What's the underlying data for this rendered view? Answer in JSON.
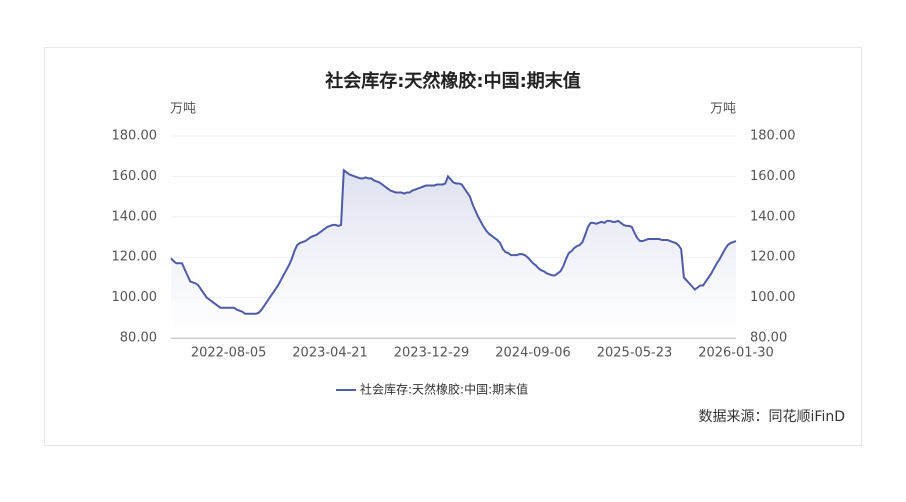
{
  "chart_data": {
    "type": "line",
    "title": "社会库存:天然橡胶:中国:期末值",
    "y_label": "万吨",
    "y2_label": "万吨",
    "source": "数据来源：同花顺iFinD",
    "categories": [
      null,
      null,
      null,
      null,
      null,
      null,
      null,
      null,
      null,
      null,
      null,
      null,
      null,
      null,
      null,
      null,
      null,
      null,
      null,
      null,
      null,
      "2022-08-05",
      null,
      null,
      null,
      null,
      null,
      null,
      null,
      null,
      null,
      null,
      null,
      null,
      null,
      null,
      null,
      null,
      null,
      null,
      null,
      null,
      null,
      null,
      null,
      null,
      null,
      null,
      null,
      null,
      null,
      null,
      null,
      null,
      null,
      null,
      null,
      null,
      "2023-04-21",
      null,
      null,
      null,
      null,
      null,
      null,
      null,
      null,
      null,
      null,
      null,
      null,
      null,
      null,
      null,
      null,
      null,
      null,
      null,
      null,
      null,
      null,
      null,
      null,
      null,
      null,
      null,
      null,
      null,
      null,
      null,
      null,
      null,
      null,
      null,
      null,
      "2023-12-29",
      null,
      null,
      null,
      null,
      null,
      null,
      null,
      null,
      null,
      null,
      null,
      null,
      null,
      null,
      null,
      null,
      null,
      null,
      null,
      null,
      null,
      null,
      null,
      null,
      null,
      null,
      null,
      null,
      null,
      null,
      null,
      null,
      null,
      null,
      null,
      null,
      "2024-09-06",
      null,
      null,
      null,
      null,
      null,
      null,
      null,
      null,
      null,
      null,
      null,
      null,
      null,
      null,
      null,
      null,
      null,
      null,
      null,
      null,
      null,
      null,
      null,
      null,
      null,
      null,
      null,
      null,
      null,
      null,
      null,
      null,
      null,
      null,
      null,
      null,
      "2025-05-23",
      null,
      null,
      null,
      null,
      null,
      null,
      null,
      null,
      null,
      null,
      null,
      null,
      null,
      null,
      null,
      null,
      null,
      null,
      null,
      null,
      null,
      null,
      null,
      null,
      null,
      null,
      null,
      null,
      null,
      null,
      null,
      null,
      null,
      null,
      null,
      null,
      "2026-01-30"
    ],
    "series": [
      {
        "name": "社会库存:天然橡胶:中国:期末值",
        "color": "#4e5ba6",
        "values": [
          119.5,
          118,
          117,
          117,
          117,
          114,
          111,
          108,
          107.5,
          107,
          106,
          104,
          102,
          100,
          99,
          98,
          97,
          96,
          95,
          95,
          95,
          95,
          95,
          95,
          94,
          93.5,
          93,
          92,
          92,
          92,
          92,
          92,
          92.5,
          94,
          96,
          98,
          100,
          102,
          104,
          106,
          108.5,
          111,
          113.5,
          116,
          119,
          123,
          126,
          127,
          127.5,
          128,
          129,
          130,
          130.5,
          131,
          132,
          133,
          134,
          135,
          135.5,
          136,
          136,
          135.5,
          136,
          163,
          162,
          161,
          160.5,
          160,
          159.5,
          159,
          159,
          159.5,
          159,
          159,
          158,
          157.5,
          157,
          156,
          155,
          154,
          153,
          152.5,
          152,
          152,
          152,
          151.5,
          152,
          152,
          153,
          153.5,
          154,
          154.5,
          155,
          155.5,
          155.5,
          155.5,
          155.5,
          156,
          156,
          156,
          156.5,
          160,
          158.5,
          157,
          156.5,
          156.5,
          156,
          154,
          152,
          150,
          146,
          143,
          140,
          137.5,
          135,
          133,
          131.5,
          130.5,
          129.5,
          128.5,
          127,
          124,
          122.5,
          122,
          121,
          121,
          121,
          121.5,
          121.5,
          121,
          120,
          118.5,
          117,
          116,
          114.5,
          113.5,
          113,
          112,
          111.5,
          111,
          111,
          112,
          113,
          115.5,
          119,
          122,
          123,
          124.5,
          125.5,
          126,
          127.5,
          131,
          135,
          137,
          137,
          136.5,
          137,
          137.5,
          137,
          138,
          138,
          137.5,
          137.5,
          138,
          137,
          136,
          135.5,
          135.5,
          135,
          132,
          129.5,
          128,
          128,
          128.5,
          129,
          129,
          129,
          129,
          129,
          128.5,
          128.5,
          128.5,
          128,
          127.5,
          127,
          126,
          124,
          110,
          108.5,
          107,
          105.5,
          104,
          105,
          106,
          106,
          108,
          110,
          112,
          114.5,
          117,
          119,
          121.5,
          124,
          126,
          127,
          127.5,
          128
        ]
      }
    ],
    "ylim": [
      80,
      180
    ],
    "yticks": [
      {
        "value": 80,
        "label": "80.00"
      },
      {
        "value": 100,
        "label": "100.00"
      },
      {
        "value": 120,
        "label": "120.00"
      },
      {
        "value": 140,
        "label": "140.00"
      },
      {
        "value": 160,
        "label": "160.00"
      },
      {
        "value": 180,
        "label": "180.00"
      }
    ],
    "y2lim": [
      80,
      180
    ],
    "y2ticks": [
      {
        "value": 80,
        "label": "80.00"
      },
      {
        "value": 100,
        "label": "100.00"
      },
      {
        "value": 120,
        "label": "120.00"
      },
      {
        "value": 140,
        "label": "140.00"
      },
      {
        "value": 160,
        "label": "160.00"
      },
      {
        "value": 180,
        "label": "180.00"
      }
    ],
    "grid": true,
    "legend": "bottom"
  }
}
